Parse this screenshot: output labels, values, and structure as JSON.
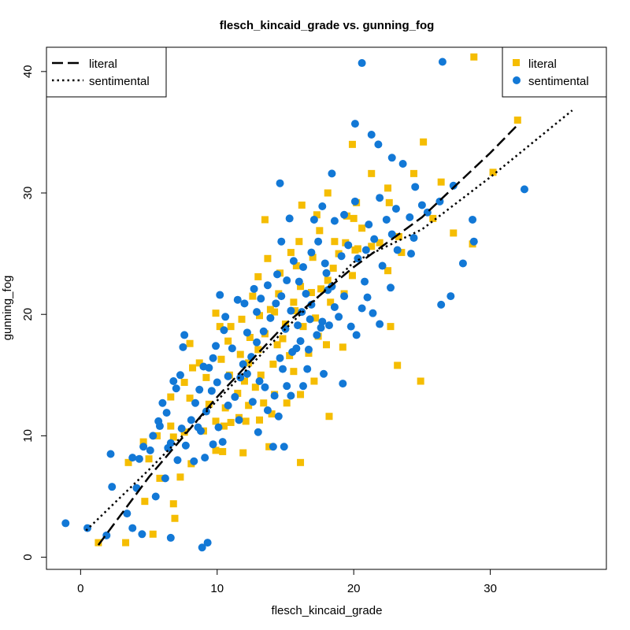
{
  "chart_data": {
    "type": "scatter",
    "title": "flesch_kincaid_grade vs. gunning_fog",
    "xlabel": "flesch_kincaid_grade",
    "ylabel": "gunning_fog",
    "xlim": [
      -2.5,
      38.5
    ],
    "ylim": [
      -1,
      42
    ],
    "xticks": [
      0,
      10,
      20,
      30
    ],
    "yticks": [
      0,
      10,
      20,
      30,
      40
    ],
    "grid": false,
    "legend_lines_position": "top-left",
    "legend_points_position": "top-right",
    "colors": {
      "literal": "#F5BD02",
      "sentimental": "#1278D6",
      "line": "#000000"
    },
    "series": [
      {
        "name": "literal",
        "marker": "square",
        "color": "#F5BD02",
        "points": [
          [
            1.3,
            1.2
          ],
          [
            3.3,
            1.2
          ],
          [
            5.3,
            1.9
          ],
          [
            6.9,
            3.2
          ],
          [
            5.8,
            6.5
          ],
          [
            6.8,
            4.4
          ],
          [
            4.7,
            4.6
          ],
          [
            7.3,
            6.6
          ],
          [
            8.1,
            7.7
          ],
          [
            9.9,
            8.8
          ],
          [
            10.4,
            8.7
          ],
          [
            11.9,
            8.6
          ],
          [
            13.8,
            9.1
          ],
          [
            16.1,
            7.8
          ],
          [
            18.2,
            11.6
          ],
          [
            5.6,
            10.0
          ],
          [
            6.8,
            9.9
          ],
          [
            7.6,
            10.3
          ],
          [
            9.0,
            10.4
          ],
          [
            10.5,
            10.8
          ],
          [
            11.0,
            11.1
          ],
          [
            12.1,
            11.2
          ],
          [
            13.1,
            11.3
          ],
          [
            14.0,
            11.8
          ],
          [
            6.6,
            13.2
          ],
          [
            8.0,
            13.1
          ],
          [
            9.4,
            12.6
          ],
          [
            10.6,
            12.3
          ],
          [
            11.5,
            13.5
          ],
          [
            12.3,
            12.5
          ],
          [
            13.4,
            12.7
          ],
          [
            14.2,
            13.4
          ],
          [
            15.1,
            12.7
          ],
          [
            16.1,
            13.4
          ],
          [
            7.6,
            14.4
          ],
          [
            9.2,
            14.8
          ],
          [
            10.9,
            15.0
          ],
          [
            12.0,
            14.5
          ],
          [
            13.2,
            15.0
          ],
          [
            14.1,
            15.9
          ],
          [
            15.6,
            15.3
          ],
          [
            17.1,
            14.5
          ],
          [
            8.7,
            16.0
          ],
          [
            10.3,
            16.3
          ],
          [
            11.7,
            16.7
          ],
          [
            13.0,
            17.1
          ],
          [
            14.4,
            17.5
          ],
          [
            15.3,
            16.6
          ],
          [
            16.7,
            16.8
          ],
          [
            8.0,
            17.6
          ],
          [
            10.8,
            17.8
          ],
          [
            12.4,
            18.1
          ],
          [
            13.5,
            18.4
          ],
          [
            15.0,
            19.2
          ],
          [
            16.3,
            19.0
          ],
          [
            18.0,
            17.5
          ],
          [
            19.2,
            17.3
          ],
          [
            10.2,
            19.0
          ],
          [
            11.8,
            19.6
          ],
          [
            13.1,
            19.9
          ],
          [
            14.2,
            20.2
          ],
          [
            15.7,
            20.3
          ],
          [
            17.2,
            19.7
          ],
          [
            18.3,
            21.0
          ],
          [
            9.9,
            20.1
          ],
          [
            12.6,
            21.5
          ],
          [
            14.5,
            21.7
          ],
          [
            16.1,
            22.3
          ],
          [
            17.6,
            22.1
          ],
          [
            19.3,
            21.7
          ],
          [
            13.0,
            23.1
          ],
          [
            14.6,
            23.4
          ],
          [
            15.8,
            24.0
          ],
          [
            17.0,
            24.7
          ],
          [
            18.5,
            23.8
          ],
          [
            20.3,
            25.4
          ],
          [
            21.3,
            25.6
          ],
          [
            22.5,
            23.6
          ],
          [
            13.7,
            24.6
          ],
          [
            16.0,
            26.0
          ],
          [
            17.5,
            26.9
          ],
          [
            18.6,
            26.0
          ],
          [
            19.4,
            25.9
          ],
          [
            20.6,
            27.1
          ],
          [
            13.5,
            27.8
          ],
          [
            16.2,
            29.0
          ],
          [
            17.3,
            28.2
          ],
          [
            19.5,
            28.1
          ],
          [
            20.0,
            27.9
          ],
          [
            23.3,
            26.4
          ],
          [
            23.5,
            25.1
          ],
          [
            18.1,
            30.0
          ],
          [
            20.2,
            29.2
          ],
          [
            22.6,
            29.2
          ],
          [
            21.3,
            31.6
          ],
          [
            22.5,
            30.4
          ],
          [
            24.4,
            31.6
          ],
          [
            19.9,
            34.0
          ],
          [
            25.1,
            34.2
          ],
          [
            26.4,
            30.9
          ],
          [
            27.3,
            26.7
          ],
          [
            25.8,
            27.9
          ],
          [
            28.7,
            25.8
          ],
          [
            30.2,
            31.7
          ],
          [
            32.0,
            36.0
          ],
          [
            24.9,
            14.5
          ],
          [
            20.1,
            25.3
          ],
          [
            21.9,
            25.9
          ],
          [
            18.9,
            25.0
          ],
          [
            15.4,
            25.1
          ],
          [
            28.8,
            41.2
          ],
          [
            18.1,
            22.8
          ],
          [
            22.7,
            19.0
          ],
          [
            23.2,
            15.8
          ],
          [
            17.4,
            18.2
          ],
          [
            19.9,
            23.2
          ],
          [
            13.9,
            20.4
          ],
          [
            12.3,
            16.0
          ],
          [
            11.0,
            19.0
          ],
          [
            9.9,
            11.2
          ],
          [
            8.2,
            15.6
          ],
          [
            6.6,
            10.8
          ],
          [
            5.0,
            8.1
          ],
          [
            4.6,
            9.5
          ],
          [
            3.5,
            7.8
          ],
          [
            15.6,
            21.0
          ],
          [
            16.9,
            21.8
          ],
          [
            14.8,
            18.0
          ],
          [
            12.8,
            14.0
          ],
          [
            11.6,
            11.5
          ]
        ]
      },
      {
        "name": "sentimental",
        "marker": "circle",
        "color": "#1278D6",
        "points": [
          [
            -1.1,
            2.8
          ],
          [
            0.5,
            2.4
          ],
          [
            1.9,
            1.8
          ],
          [
            2.2,
            8.5
          ],
          [
            2.3,
            5.8
          ],
          [
            3.4,
            3.6
          ],
          [
            3.8,
            2.4
          ],
          [
            4.5,
            1.9
          ],
          [
            4.1,
            5.7
          ],
          [
            3.8,
            8.2
          ],
          [
            4.3,
            8.1
          ],
          [
            4.6,
            9.1
          ],
          [
            5.1,
            8.8
          ],
          [
            5.5,
            5.0
          ],
          [
            6.2,
            6.5
          ],
          [
            6.6,
            1.6
          ],
          [
            8.9,
            0.8
          ],
          [
            9.3,
            1.2
          ],
          [
            5.3,
            10.0
          ],
          [
            5.8,
            10.8
          ],
          [
            6.0,
            12.7
          ],
          [
            6.6,
            9.4
          ],
          [
            7.1,
            8.0
          ],
          [
            7.4,
            10.6
          ],
          [
            7.7,
            9.2
          ],
          [
            8.3,
            7.9
          ],
          [
            8.8,
            10.4
          ],
          [
            9.1,
            8.2
          ],
          [
            9.7,
            9.3
          ],
          [
            10.1,
            10.7
          ],
          [
            10.4,
            9.5
          ],
          [
            6.3,
            11.9
          ],
          [
            6.8,
            14.5
          ],
          [
            7.3,
            15.0
          ],
          [
            7.5,
            17.3
          ],
          [
            7.6,
            18.3
          ],
          [
            8.4,
            12.7
          ],
          [
            8.7,
            13.8
          ],
          [
            9.2,
            12.0
          ],
          [
            9.4,
            15.6
          ],
          [
            9.7,
            16.4
          ],
          [
            9.9,
            17.4
          ],
          [
            10.2,
            21.6
          ],
          [
            10.6,
            19.8
          ],
          [
            10.8,
            14.9
          ],
          [
            11.3,
            13.2
          ],
          [
            11.6,
            11.3
          ],
          [
            11.9,
            15.9
          ],
          [
            12.2,
            15.1
          ],
          [
            12.5,
            16.5
          ],
          [
            12.9,
            17.7
          ],
          [
            13.1,
            14.5
          ],
          [
            13.5,
            14.0
          ],
          [
            13.7,
            12.1
          ],
          [
            14.2,
            13.3
          ],
          [
            14.6,
            16.4
          ],
          [
            14.8,
            15.5
          ],
          [
            15.1,
            14.1
          ],
          [
            15.5,
            16.9
          ],
          [
            15.8,
            17.2
          ],
          [
            16.1,
            17.8
          ],
          [
            16.3,
            14.1
          ],
          [
            16.7,
            17.1
          ],
          [
            12.2,
            18.5
          ],
          [
            12.9,
            20.2
          ],
          [
            13.2,
            21.3
          ],
          [
            13.9,
            19.7
          ],
          [
            14.3,
            20.9
          ],
          [
            14.7,
            21.5
          ],
          [
            15.0,
            18.8
          ],
          [
            15.4,
            20.3
          ],
          [
            15.9,
            19.1
          ],
          [
            16.2,
            20.2
          ],
          [
            16.5,
            21.7
          ],
          [
            16.9,
            20.8
          ],
          [
            17.3,
            18.3
          ],
          [
            17.7,
            19.4
          ],
          [
            18.1,
            22.0
          ],
          [
            18.6,
            20.6
          ],
          [
            18.9,
            19.8
          ],
          [
            19.3,
            21.5
          ],
          [
            19.8,
            19.0
          ],
          [
            20.2,
            18.3
          ],
          [
            20.6,
            20.5
          ],
          [
            21.0,
            21.4
          ],
          [
            21.4,
            20.1
          ],
          [
            21.9,
            19.2
          ],
          [
            13.7,
            22.4
          ],
          [
            14.4,
            23.3
          ],
          [
            15.1,
            22.8
          ],
          [
            15.6,
            24.4
          ],
          [
            16.3,
            23.9
          ],
          [
            16.9,
            25.1
          ],
          [
            17.4,
            26.0
          ],
          [
            17.9,
            24.2
          ],
          [
            18.4,
            22.3
          ],
          [
            19.1,
            24.8
          ],
          [
            19.6,
            25.7
          ],
          [
            20.3,
            24.6
          ],
          [
            20.9,
            25.3
          ],
          [
            21.5,
            26.2
          ],
          [
            22.1,
            24.0
          ],
          [
            22.8,
            26.6
          ],
          [
            23.2,
            25.3
          ],
          [
            14.7,
            26.0
          ],
          [
            17.1,
            27.8
          ],
          [
            18.6,
            27.7
          ],
          [
            19.3,
            28.2
          ],
          [
            20.1,
            29.3
          ],
          [
            21.1,
            27.4
          ],
          [
            21.9,
            29.6
          ],
          [
            22.4,
            27.8
          ],
          [
            23.1,
            28.7
          ],
          [
            14.6,
            30.8
          ],
          [
            18.4,
            31.6
          ],
          [
            20.1,
            35.7
          ],
          [
            21.3,
            34.8
          ],
          [
            21.8,
            34.0
          ],
          [
            22.8,
            32.9
          ],
          [
            23.6,
            32.4
          ],
          [
            24.5,
            30.5
          ],
          [
            25.4,
            28.4
          ],
          [
            24.1,
            28.0
          ],
          [
            24.4,
            26.3
          ],
          [
            26.3,
            29.3
          ],
          [
            27.3,
            30.6
          ],
          [
            27.1,
            21.5
          ],
          [
            26.4,
            20.8
          ],
          [
            28.0,
            24.2
          ],
          [
            28.7,
            27.8
          ],
          [
            28.8,
            26.0
          ],
          [
            32.5,
            30.3
          ],
          [
            26.5,
            40.8
          ],
          [
            20.6,
            40.7
          ],
          [
            24.2,
            25.0
          ],
          [
            25.0,
            29.0
          ],
          [
            11.7,
            14.8
          ],
          [
            10.0,
            14.4
          ],
          [
            9.0,
            15.7
          ],
          [
            8.1,
            11.3
          ],
          [
            13.0,
            10.3
          ],
          [
            14.1,
            9.1
          ],
          [
            14.9,
            9.1
          ],
          [
            7.0,
            13.9
          ],
          [
            6.4,
            9.0
          ],
          [
            5.7,
            11.2
          ],
          [
            10.8,
            12.5
          ],
          [
            12.6,
            12.8
          ],
          [
            14.5,
            11.6
          ],
          [
            15.4,
            13.3
          ],
          [
            16.6,
            15.5
          ],
          [
            17.8,
            15.1
          ],
          [
            19.2,
            14.3
          ],
          [
            11.1,
            17.2
          ],
          [
            10.5,
            18.7
          ],
          [
            12.0,
            20.9
          ],
          [
            13.4,
            18.6
          ],
          [
            17.6,
            18.9
          ],
          [
            16.0,
            22.7
          ],
          [
            18.0,
            23.4
          ],
          [
            12.7,
            22.1
          ],
          [
            11.5,
            21.2
          ],
          [
            15.3,
            27.9
          ],
          [
            17.7,
            28.9
          ],
          [
            16.8,
            19.6
          ],
          [
            20.8,
            22.7
          ],
          [
            22.7,
            22.2
          ],
          [
            18.2,
            19.1
          ],
          [
            9.6,
            13.7
          ],
          [
            8.6,
            10.7
          ]
        ]
      }
    ],
    "fit_lines": [
      {
        "name": "literal",
        "style": "dashed",
        "x": [
          1.3,
          5.0,
          10.0,
          15.0,
          20.0,
          25.0,
          30.0,
          32.0
        ],
        "y": [
          1.0,
          6.6,
          13.2,
          19.2,
          23.9,
          28.0,
          33.3,
          35.6
        ]
      },
      {
        "name": "sentimental",
        "style": "dotted",
        "x": [
          0.4,
          5.0,
          10.0,
          15.0,
          20.0,
          25.0,
          30.0,
          36.0
        ],
        "y": [
          2.2,
          7.2,
          12.9,
          18.8,
          24.3,
          27.0,
          31.3,
          36.8
        ]
      }
    ]
  }
}
